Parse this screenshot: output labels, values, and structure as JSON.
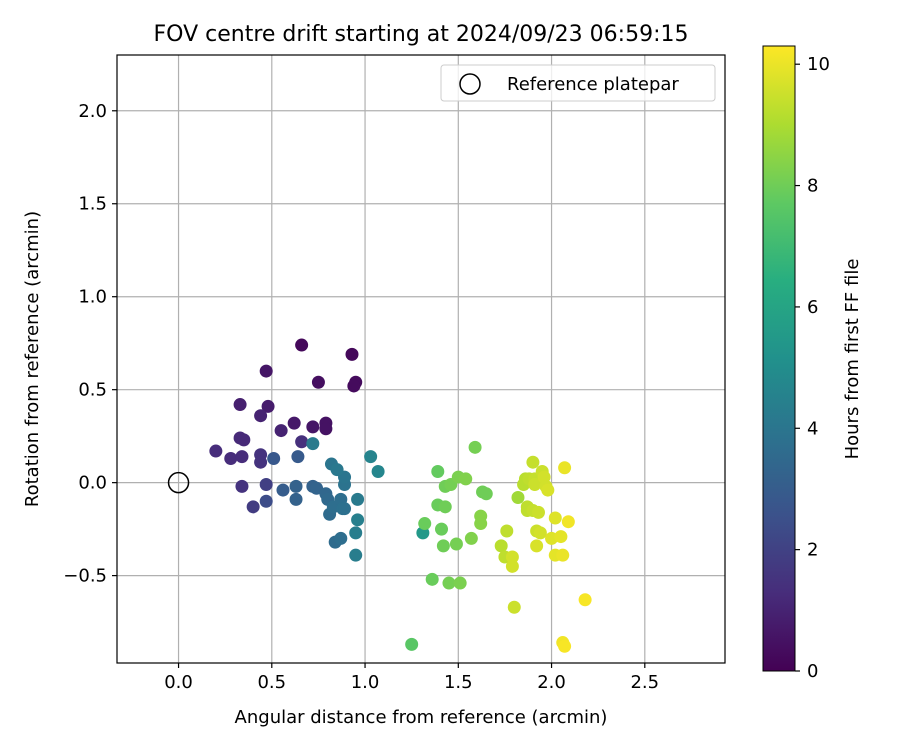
{
  "chart_data": {
    "type": "scatter",
    "title": "FOV centre drift starting at 2024/09/23 06:59:15",
    "xlabel": "Angular distance from reference (arcmin)",
    "ylabel": "Rotation from reference (arcmin)",
    "xlim": [
      -0.33,
      2.93
    ],
    "ylim": [
      -0.97,
      2.3
    ],
    "xticks": [
      "0.0",
      "0.5",
      "1.0",
      "1.5",
      "2.0",
      "2.5"
    ],
    "xtick_values": [
      0,
      0.5,
      1.0,
      1.5,
      2.0,
      2.5
    ],
    "yticks": [
      "−0.5",
      "0.0",
      "0.5",
      "1.0",
      "1.5",
      "2.0"
    ],
    "ytick_values": [
      -0.5,
      0,
      0.5,
      1.0,
      1.5,
      2.0
    ],
    "grid": true,
    "legend": {
      "position": "top-right",
      "label": "Reference platepar",
      "marker": "open-circle"
    },
    "reference_point": {
      "x": 0,
      "y": 0
    },
    "colorbar": {
      "label": "Hours from first FF file",
      "colormap": "viridis",
      "range": [
        0,
        10.3
      ],
      "ticks": [
        "0",
        "2",
        "4",
        "6",
        "8",
        "10"
      ],
      "tick_values": [
        0,
        2,
        4,
        6,
        8,
        10
      ]
    },
    "points": [
      {
        "x": 0.66,
        "y": 0.74,
        "h": 0.2
      },
      {
        "x": 0.93,
        "y": 0.69,
        "h": 0.2
      },
      {
        "x": 0.95,
        "y": 0.54,
        "h": 0.3
      },
      {
        "x": 0.94,
        "y": 0.52,
        "h": 0.3
      },
      {
        "x": 0.75,
        "y": 0.54,
        "h": 0.4
      },
      {
        "x": 0.47,
        "y": 0.6,
        "h": 0.6
      },
      {
        "x": 0.79,
        "y": 0.32,
        "h": 0.5
      },
      {
        "x": 0.72,
        "y": 0.3,
        "h": 0.6
      },
      {
        "x": 0.79,
        "y": 0.29,
        "h": 0.5
      },
      {
        "x": 0.62,
        "y": 0.32,
        "h": 0.7
      },
      {
        "x": 0.48,
        "y": 0.41,
        "h": 0.8
      },
      {
        "x": 0.33,
        "y": 0.42,
        "h": 0.9
      },
      {
        "x": 0.44,
        "y": 0.36,
        "h": 1.0
      },
      {
        "x": 0.55,
        "y": 0.28,
        "h": 1.0
      },
      {
        "x": 0.66,
        "y": 0.22,
        "h": 1.4
      },
      {
        "x": 0.33,
        "y": 0.24,
        "h": 1.2
      },
      {
        "x": 0.35,
        "y": 0.23,
        "h": 1.2
      },
      {
        "x": 0.2,
        "y": 0.17,
        "h": 1.3
      },
      {
        "x": 0.28,
        "y": 0.13,
        "h": 1.3
      },
      {
        "x": 0.34,
        "y": 0.14,
        "h": 1.3
      },
      {
        "x": 0.44,
        "y": 0.15,
        "h": 1.5
      },
      {
        "x": 0.44,
        "y": 0.11,
        "h": 1.5
      },
      {
        "x": 0.34,
        "y": -0.02,
        "h": 1.5
      },
      {
        "x": 0.47,
        "y": -0.01,
        "h": 1.9
      },
      {
        "x": 0.4,
        "y": -0.13,
        "h": 1.8
      },
      {
        "x": 0.47,
        "y": -0.1,
        "h": 2.4
      },
      {
        "x": 0.51,
        "y": 0.13,
        "h": 2.8
      },
      {
        "x": 0.64,
        "y": 0.14,
        "h": 2.9
      },
      {
        "x": 0.56,
        "y": -0.04,
        "h": 3.0
      },
      {
        "x": 0.63,
        "y": -0.09,
        "h": 3.2
      },
      {
        "x": 0.63,
        "y": -0.02,
        "h": 3.2
      },
      {
        "x": 0.72,
        "y": -0.02,
        "h": 3.2
      },
      {
        "x": 0.74,
        "y": -0.03,
        "h": 3.3
      },
      {
        "x": 0.79,
        "y": -0.06,
        "h": 3.4
      },
      {
        "x": 0.8,
        "y": -0.09,
        "h": 3.5
      },
      {
        "x": 0.81,
        "y": -0.17,
        "h": 3.6
      },
      {
        "x": 0.83,
        "y": -0.13,
        "h": 3.7
      },
      {
        "x": 0.84,
        "y": -0.32,
        "h": 3.6
      },
      {
        "x": 0.87,
        "y": -0.3,
        "h": 3.7
      },
      {
        "x": 0.87,
        "y": -0.09,
        "h": 3.7
      },
      {
        "x": 0.88,
        "y": -0.14,
        "h": 3.8
      },
      {
        "x": 0.89,
        "y": -0.14,
        "h": 3.8
      },
      {
        "x": 0.89,
        "y": -0.01,
        "h": 3.9
      },
      {
        "x": 0.89,
        "y": 0.03,
        "h": 4.0
      },
      {
        "x": 0.82,
        "y": 0.1,
        "h": 4.0
      },
      {
        "x": 0.85,
        "y": 0.07,
        "h": 4.1
      },
      {
        "x": 0.72,
        "y": 0.21,
        "h": 4.2
      },
      {
        "x": 0.96,
        "y": -0.09,
        "h": 4.2
      },
      {
        "x": 0.95,
        "y": -0.27,
        "h": 4.3
      },
      {
        "x": 0.96,
        "y": -0.2,
        "h": 4.4
      },
      {
        "x": 0.95,
        "y": -0.39,
        "h": 4.3
      },
      {
        "x": 1.03,
        "y": 0.14,
        "h": 4.6
      },
      {
        "x": 1.07,
        "y": 0.06,
        "h": 4.7
      },
      {
        "x": 1.31,
        "y": -0.27,
        "h": 5.5
      },
      {
        "x": 1.25,
        "y": -0.87,
        "h": 7.6
      },
      {
        "x": 1.32,
        "y": -0.22,
        "h": 7.9
      },
      {
        "x": 1.36,
        "y": -0.52,
        "h": 7.9
      },
      {
        "x": 1.39,
        "y": 0.06,
        "h": 7.8
      },
      {
        "x": 1.39,
        "y": -0.12,
        "h": 7.9
      },
      {
        "x": 1.41,
        "y": -0.25,
        "h": 7.9
      },
      {
        "x": 1.42,
        "y": -0.34,
        "h": 8.0
      },
      {
        "x": 1.43,
        "y": -0.02,
        "h": 8.0
      },
      {
        "x": 1.43,
        "y": -0.13,
        "h": 8.0
      },
      {
        "x": 1.45,
        "y": -0.54,
        "h": 8.1
      },
      {
        "x": 1.46,
        "y": -0.01,
        "h": 8.1
      },
      {
        "x": 1.49,
        "y": -0.33,
        "h": 8.1
      },
      {
        "x": 1.5,
        "y": 0.03,
        "h": 8.2
      },
      {
        "x": 1.51,
        "y": -0.54,
        "h": 8.2
      },
      {
        "x": 1.54,
        "y": 0.02,
        "h": 8.3
      },
      {
        "x": 1.57,
        "y": -0.3,
        "h": 8.3
      },
      {
        "x": 1.59,
        "y": 0.19,
        "h": 8.1
      },
      {
        "x": 1.62,
        "y": -0.18,
        "h": 8.4
      },
      {
        "x": 1.62,
        "y": -0.22,
        "h": 8.4
      },
      {
        "x": 1.63,
        "y": -0.05,
        "h": 8.0
      },
      {
        "x": 1.65,
        "y": -0.06,
        "h": 8.0
      },
      {
        "x": 1.73,
        "y": -0.34,
        "h": 9.2
      },
      {
        "x": 1.75,
        "y": -0.4,
        "h": 9.3
      },
      {
        "x": 1.76,
        "y": -0.26,
        "h": 9.3
      },
      {
        "x": 1.79,
        "y": -0.45,
        "h": 9.6
      },
      {
        "x": 1.79,
        "y": -0.4,
        "h": 9.6
      },
      {
        "x": 1.8,
        "y": -0.67,
        "h": 9.5
      },
      {
        "x": 1.82,
        "y": -0.08,
        "h": 8.8
      },
      {
        "x": 1.85,
        "y": -0.01,
        "h": 9.2
      },
      {
        "x": 1.86,
        "y": 0.02,
        "h": 9.2
      },
      {
        "x": 1.87,
        "y": -0.13,
        "h": 9.3
      },
      {
        "x": 1.87,
        "y": -0.15,
        "h": 9.3
      },
      {
        "x": 1.88,
        "y": 0.02,
        "h": 9.3
      },
      {
        "x": 1.9,
        "y": 0.11,
        "h": 9.4
      },
      {
        "x": 1.9,
        "y": -0.15,
        "h": 9.4
      },
      {
        "x": 1.91,
        "y": 0.02,
        "h": 9.4
      },
      {
        "x": 1.91,
        "y": -0.01,
        "h": 9.5
      },
      {
        "x": 1.92,
        "y": -0.26,
        "h": 9.5
      },
      {
        "x": 1.92,
        "y": -0.34,
        "h": 9.7
      },
      {
        "x": 1.93,
        "y": -0.16,
        "h": 9.5
      },
      {
        "x": 1.94,
        "y": -0.27,
        "h": 9.6
      },
      {
        "x": 1.95,
        "y": 0.06,
        "h": 9.5
      },
      {
        "x": 1.96,
        "y": 0.03,
        "h": 9.6
      },
      {
        "x": 1.97,
        "y": -0.02,
        "h": 9.6
      },
      {
        "x": 1.98,
        "y": -0.04,
        "h": 9.7
      },
      {
        "x": 2.0,
        "y": -0.3,
        "h": 9.8
      },
      {
        "x": 2.02,
        "y": -0.19,
        "h": 9.8
      },
      {
        "x": 2.02,
        "y": -0.39,
        "h": 9.9
      },
      {
        "x": 2.05,
        "y": -0.29,
        "h": 9.9
      },
      {
        "x": 2.06,
        "y": -0.39,
        "h": 10.0
      },
      {
        "x": 2.06,
        "y": -0.86,
        "h": 10.1
      },
      {
        "x": 2.07,
        "y": -0.88,
        "h": 10.2
      },
      {
        "x": 2.07,
        "y": 0.08,
        "h": 10.0
      },
      {
        "x": 2.09,
        "y": -0.21,
        "h": 10.1
      },
      {
        "x": 2.18,
        "y": -0.63,
        "h": 10.2
      }
    ]
  }
}
